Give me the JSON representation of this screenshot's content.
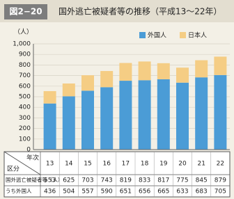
{
  "header": {
    "figure_label": "図2−20",
    "title": "国外逃亡被疑者等の推移（平成13～22年）"
  },
  "chart_data": {
    "type": "stacked_bar",
    "y_label": "（人）",
    "categories": [
      "13",
      "14",
      "15",
      "16",
      "17",
      "18",
      "19",
      "20",
      "21",
      "22"
    ],
    "series": [
      {
        "name": "外国人",
        "color": "#4b9cd6",
        "values": [
          436,
          504,
          557,
          590,
          651,
          656,
          665,
          633,
          683,
          705
        ]
      },
      {
        "name": "日本人",
        "color": "#f5cd84",
        "values": [
          117,
          121,
          146,
          153,
          168,
          177,
          152,
          142,
          162,
          174
        ]
      }
    ],
    "ylim": [
      0,
      1000
    ],
    "yticks": [
      0,
      100,
      200,
      300,
      400,
      500,
      600,
      700,
      800,
      900,
      {
        "value": 1000,
        "label": "1,000"
      }
    ],
    "grid": true,
    "legend": "top-right"
  },
  "table": {
    "corner_column": "年次",
    "corner_row": "区分",
    "rows": [
      {
        "label": "国外逃亡被疑者等（人）",
        "values": [
          553,
          625,
          703,
          743,
          819,
          833,
          817,
          775,
          845,
          879
        ]
      },
      {
        "label": "うち外国人",
        "values": [
          436,
          504,
          557,
          590,
          651,
          656,
          665,
          633,
          683,
          705
        ]
      }
    ]
  }
}
